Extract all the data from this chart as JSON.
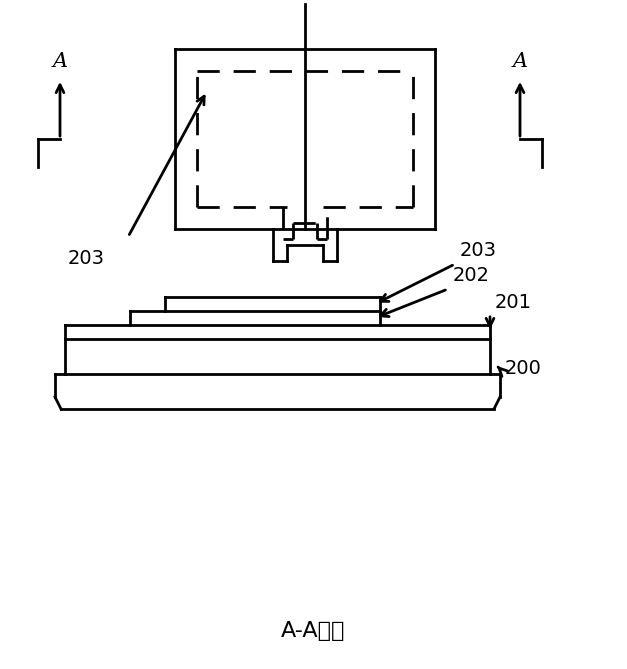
{
  "bg_color": "#ffffff",
  "line_color": "#000000",
  "fig_width": 6.27,
  "fig_height": 6.69,
  "dpi": 100,
  "title_text": "A-A剖面",
  "title_fontsize": 16
}
